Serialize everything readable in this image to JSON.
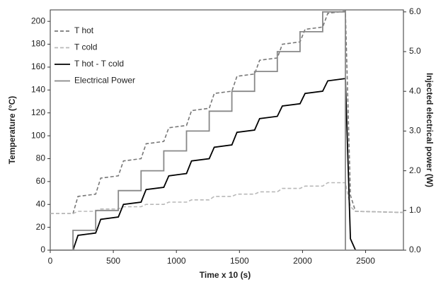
{
  "chart_data": {
    "type": "line",
    "xlabel": "Time x 10 (s)",
    "ylabel": "Temperature (°C)",
    "y2label": "Injected electrical power (W)",
    "xlim": [
      0,
      2800
    ],
    "xticks": [
      0,
      500,
      1000,
      1500,
      2000,
      2500
    ],
    "ylim": [
      0,
      210
    ],
    "yticks": [
      0,
      20,
      40,
      60,
      80,
      100,
      120,
      140,
      160,
      180,
      200
    ],
    "y2lim": [
      0,
      6.05
    ],
    "y2ticks": [
      {
        "value": 0,
        "label": "0.0"
      },
      {
        "value": 1,
        "label": "1.0"
      },
      {
        "value": 2,
        "label": "2.0"
      },
      {
        "value": 3,
        "label": "3.0"
      },
      {
        "value": 4,
        "label": "4.0"
      },
      {
        "value": 5,
        "label": "5.0"
      },
      {
        "value": 6,
        "label": "6.0"
      }
    ],
    "legend": "upper left",
    "series": [
      {
        "name": "T hot",
        "color": "#777777",
        "dashed": true,
        "x": [
          0,
          180,
          220,
          360,
          400,
          540,
          580,
          720,
          760,
          900,
          940,
          1080,
          1120,
          1260,
          1300,
          1440,
          1480,
          1620,
          1660,
          1800,
          1840,
          1980,
          2020,
          2160,
          2200,
          2340,
          2380,
          2420,
          2800
        ],
        "values": [
          32,
          32,
          47,
          49,
          63,
          65,
          78,
          80,
          93,
          95,
          107,
          109,
          122,
          124,
          137,
          139,
          152,
          154,
          166,
          168,
          180,
          182,
          193,
          195,
          207,
          209,
          48,
          34,
          33
        ]
      },
      {
        "name": "T cold",
        "color": "#b8b8b8",
        "dashed": true,
        "x": [
          0,
          180,
          220,
          360,
          400,
          540,
          580,
          720,
          760,
          900,
          940,
          1080,
          1120,
          1260,
          1300,
          1440,
          1480,
          1620,
          1660,
          1800,
          1840,
          1980,
          2020,
          2160,
          2200,
          2340,
          2380,
          2420,
          2800
        ],
        "values": [
          32,
          32,
          34,
          34,
          36,
          36,
          38,
          38,
          40,
          40,
          42,
          42,
          44,
          44,
          47,
          47,
          49,
          49,
          51,
          51,
          54,
          54,
          56,
          56,
          59,
          59,
          38,
          34,
          33
        ]
      },
      {
        "name": "T hot - T cold",
        "color": "#000000",
        "dashed": false,
        "x": [
          0,
          180,
          220,
          360,
          400,
          540,
          580,
          720,
          760,
          900,
          940,
          1080,
          1120,
          1260,
          1300,
          1440,
          1480,
          1620,
          1660,
          1800,
          1840,
          1980,
          2020,
          2160,
          2200,
          2340,
          2380,
          2420,
          2800
        ],
        "values": [
          0,
          0,
          13,
          15,
          27,
          29,
          40,
          42,
          53,
          55,
          65,
          67,
          78,
          80,
          90,
          92,
          103,
          105,
          115,
          117,
          126,
          128,
          137,
          139,
          148,
          150,
          10,
          0,
          0
        ]
      },
      {
        "name": "Electrical Power",
        "color": "#888888",
        "dashed": false,
        "axis": "y2",
        "x": [
          0,
          180,
          180,
          360,
          360,
          540,
          540,
          720,
          720,
          900,
          900,
          1080,
          1080,
          1260,
          1260,
          1440,
          1440,
          1620,
          1620,
          1800,
          1800,
          1980,
          1980,
          2160,
          2160,
          2340,
          2340,
          2800
        ],
        "values": [
          0,
          0,
          0.5,
          0.5,
          1,
          1,
          1.5,
          1.5,
          2,
          2,
          2.5,
          2.5,
          3,
          3,
          3.5,
          3.5,
          4,
          4,
          4.5,
          4.5,
          5,
          5,
          5.5,
          5.5,
          6,
          6,
          0,
          0
        ]
      }
    ]
  }
}
